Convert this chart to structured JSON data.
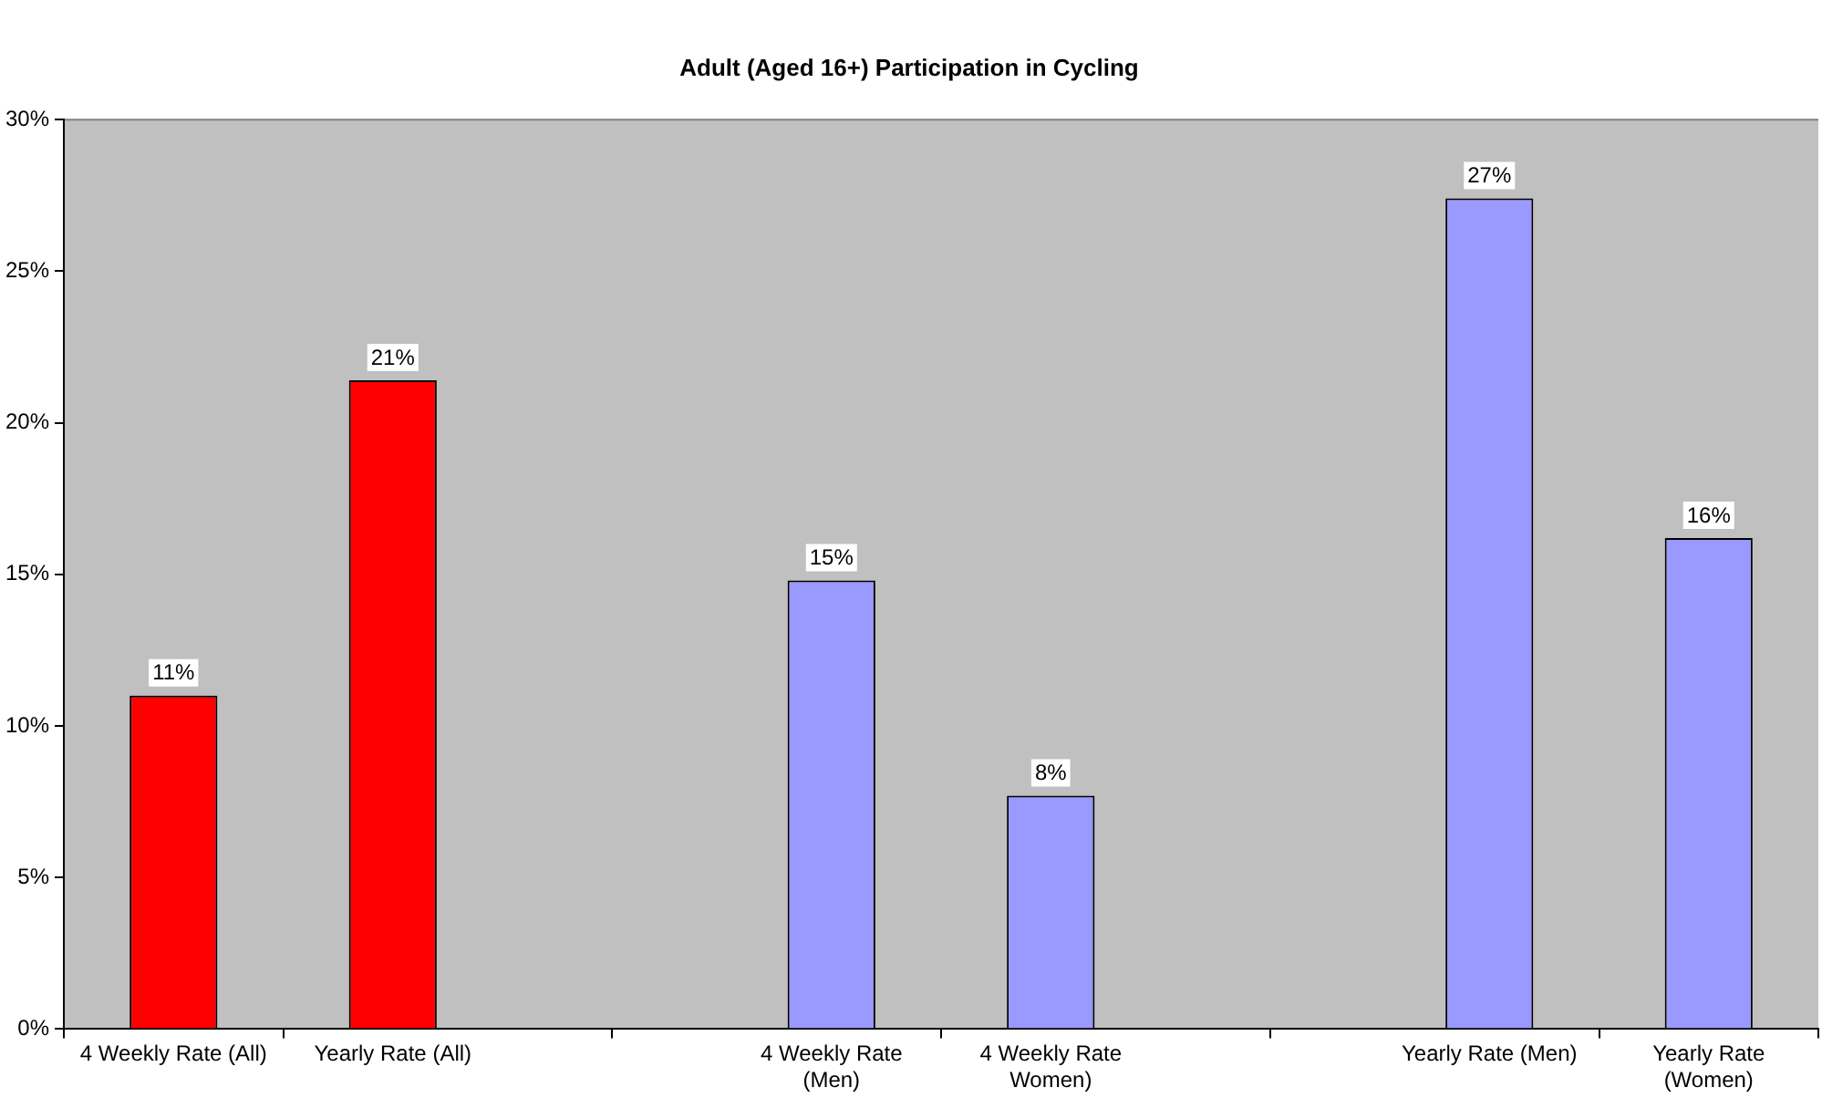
{
  "chart_data": {
    "type": "bar",
    "title": "Adult (Aged 16+) Participation in Cycling",
    "categories": [
      "4 Weekly Rate (All)",
      "Yearly Rate (All)",
      null,
      "4 Weekly Rate (Men)",
      "4 Weekly Rate Women)",
      null,
      "Yearly Rate (Men)",
      "Yearly Rate (Women)"
    ],
    "values": [
      11.0,
      21.4,
      null,
      14.8,
      7.7,
      null,
      27.4,
      16.2
    ],
    "colors": [
      "#ff0000",
      "#ff0000",
      "#9999ff",
      "#9999ff",
      "#9999ff",
      "#9999ff",
      "#9999ff",
      "#9999ff"
    ],
    "value_labels": [
      "11%",
      "21%",
      null,
      "15%",
      "8%",
      null,
      "27%",
      "16%"
    ],
    "ylim": [
      0,
      30
    ],
    "yticks": [
      {
        "value": 0,
        "label": "0%"
      },
      {
        "value": 5,
        "label": "5%"
      },
      {
        "value": 10,
        "label": "10%"
      },
      {
        "value": 15,
        "label": "15%"
      },
      {
        "value": 20,
        "label": "20%"
      },
      {
        "value": 25,
        "label": "25%"
      },
      {
        "value": 30,
        "label": "30%"
      }
    ],
    "grid": false,
    "legend": false
  }
}
